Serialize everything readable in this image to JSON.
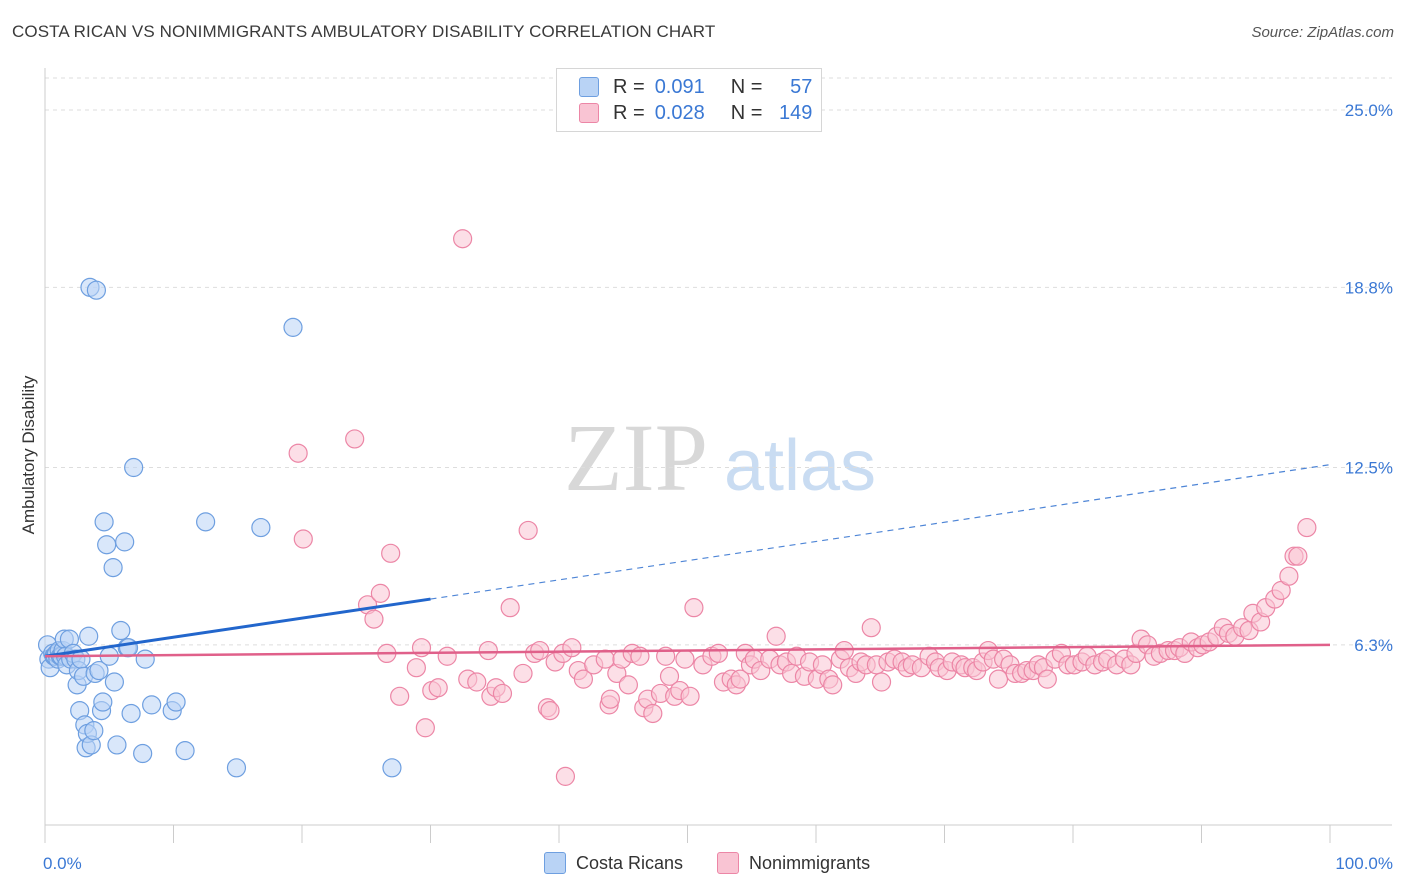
{
  "header": {
    "title": "COSTA RICAN VS NONIMMIGRANTS AMBULATORY DISABILITY CORRELATION CHART",
    "source": "Source: ZipAtlas.com"
  },
  "legend": {
    "r_label": "R =",
    "n_label": "N =",
    "rows": [
      {
        "r": "0.091",
        "n": "57"
      },
      {
        "r": "0.028",
        "n": "149"
      }
    ]
  },
  "watermark": {
    "zip": "ZIP",
    "atlas": "atlas"
  },
  "colors": {
    "blue_fill": "#b9d3f5",
    "blue_stroke": "#6e9fe0",
    "blue_line": "#2266cc",
    "pink_fill": "#f9c4d3",
    "pink_stroke": "#ec86a6",
    "pink_line": "#e0608a",
    "tick_label": "#3a78d4"
  },
  "chart_data": {
    "type": "scatter",
    "title": "COSTA RICAN VS NONIMMIGRANTS AMBULATORY DISABILITY CORRELATION CHART",
    "xlabel": "",
    "ylabel": "Ambulatory Disability",
    "xlim": [
      0,
      100
    ],
    "ylim": [
      0,
      26.4
    ],
    "x_tick_labels": [
      "0.0%",
      "100.0%"
    ],
    "y_ticks": [
      6.3,
      12.5,
      18.8,
      25.0
    ],
    "y_tick_labels": [
      "6.3%",
      "12.5%",
      "18.8%",
      "25.0%"
    ],
    "grid": "horizontal dashed",
    "legend_position": "top-center",
    "series": [
      {
        "name": "Costa Ricans",
        "R": 0.091,
        "N": 57,
        "trend": {
          "x": [
            0,
            30
          ],
          "y": [
            5.9,
            7.9
          ],
          "extended_to": [
            100,
            12.6
          ]
        },
        "points": [
          [
            0.2,
            6.3
          ],
          [
            0.3,
            5.8
          ],
          [
            0.4,
            5.5
          ],
          [
            0.6,
            6.0
          ],
          [
            0.7,
            5.9
          ],
          [
            0.8,
            5.9
          ],
          [
            0.9,
            6.0
          ],
          [
            1.0,
            5.8
          ],
          [
            1.1,
            6.1
          ],
          [
            1.2,
            5.9
          ],
          [
            1.3,
            5.9
          ],
          [
            1.4,
            6.1
          ],
          [
            1.5,
            6.5
          ],
          [
            1.6,
            5.9
          ],
          [
            1.7,
            5.6
          ],
          [
            1.9,
            6.5
          ],
          [
            2.0,
            5.8
          ],
          [
            2.2,
            6.0
          ],
          [
            2.4,
            5.8
          ],
          [
            2.5,
            4.9
          ],
          [
            2.6,
            5.4
          ],
          [
            2.7,
            4.0
          ],
          [
            2.8,
            5.8
          ],
          [
            3.0,
            5.2
          ],
          [
            3.1,
            3.5
          ],
          [
            3.2,
            2.7
          ],
          [
            3.3,
            3.2
          ],
          [
            3.4,
            6.6
          ],
          [
            3.5,
            18.8
          ],
          [
            3.6,
            2.8
          ],
          [
            3.8,
            3.3
          ],
          [
            3.9,
            5.3
          ],
          [
            4.0,
            18.7
          ],
          [
            4.2,
            5.4
          ],
          [
            4.4,
            4.0
          ],
          [
            4.5,
            4.3
          ],
          [
            4.6,
            10.6
          ],
          [
            4.8,
            9.8
          ],
          [
            5.0,
            5.9
          ],
          [
            5.3,
            9.0
          ],
          [
            5.4,
            5.0
          ],
          [
            5.6,
            2.8
          ],
          [
            5.9,
            6.8
          ],
          [
            6.2,
            9.9
          ],
          [
            6.4,
            6.2
          ],
          [
            6.5,
            6.2
          ],
          [
            6.7,
            3.9
          ],
          [
            6.9,
            12.5
          ],
          [
            7.6,
            2.5
          ],
          [
            7.8,
            5.8
          ],
          [
            8.3,
            4.2
          ],
          [
            9.9,
            4.0
          ],
          [
            10.2,
            4.3
          ],
          [
            10.9,
            2.6
          ],
          [
            12.5,
            10.6
          ],
          [
            14.9,
            2.0
          ],
          [
            16.8,
            10.4
          ],
          [
            19.3,
            17.4
          ],
          [
            27.0,
            2.0
          ]
        ]
      },
      {
        "name": "Nonimmigrants",
        "R": 0.028,
        "N": 149,
        "trend": {
          "x": [
            0,
            100
          ],
          "y": [
            5.9,
            6.3
          ]
        },
        "points": [
          [
            19.7,
            13.0
          ],
          [
            20.1,
            10.0
          ],
          [
            24.1,
            13.5
          ],
          [
            25.1,
            7.7
          ],
          [
            25.6,
            7.2
          ],
          [
            26.1,
            8.1
          ],
          [
            26.6,
            6.0
          ],
          [
            26.9,
            9.5
          ],
          [
            27.6,
            4.5
          ],
          [
            28.9,
            5.5
          ],
          [
            29.3,
            6.2
          ],
          [
            29.6,
            3.4
          ],
          [
            30.1,
            4.7
          ],
          [
            30.6,
            4.8
          ],
          [
            31.3,
            5.9
          ],
          [
            32.5,
            20.5
          ],
          [
            32.9,
            5.1
          ],
          [
            33.6,
            5.0
          ],
          [
            34.5,
            6.1
          ],
          [
            34.7,
            4.5
          ],
          [
            35.1,
            4.8
          ],
          [
            35.6,
            4.6
          ],
          [
            36.2,
            7.6
          ],
          [
            37.2,
            5.3
          ],
          [
            37.6,
            10.3
          ],
          [
            38.1,
            6.0
          ],
          [
            38.5,
            6.1
          ],
          [
            39.1,
            4.1
          ],
          [
            39.3,
            4.0
          ],
          [
            39.7,
            5.7
          ],
          [
            40.3,
            6.0
          ],
          [
            40.5,
            1.7
          ],
          [
            41.0,
            6.2
          ],
          [
            41.5,
            5.4
          ],
          [
            41.9,
            5.1
          ],
          [
            42.7,
            5.6
          ],
          [
            43.6,
            5.8
          ],
          [
            43.9,
            4.2
          ],
          [
            44.0,
            4.4
          ],
          [
            44.5,
            5.3
          ],
          [
            44.9,
            5.8
          ],
          [
            45.4,
            4.9
          ],
          [
            45.7,
            6.0
          ],
          [
            46.3,
            5.9
          ],
          [
            46.6,
            4.1
          ],
          [
            46.9,
            4.4
          ],
          [
            47.3,
            3.9
          ],
          [
            47.9,
            4.6
          ],
          [
            48.3,
            5.9
          ],
          [
            48.6,
            5.2
          ],
          [
            49.0,
            4.5
          ],
          [
            49.4,
            4.7
          ],
          [
            49.8,
            5.8
          ],
          [
            50.2,
            4.5
          ],
          [
            50.5,
            7.6
          ],
          [
            51.2,
            5.6
          ],
          [
            51.9,
            5.9
          ],
          [
            52.4,
            6.0
          ],
          [
            52.8,
            5.0
          ],
          [
            53.4,
            5.1
          ],
          [
            53.8,
            4.9
          ],
          [
            54.1,
            5.1
          ],
          [
            54.5,
            6.0
          ],
          [
            54.9,
            5.6
          ],
          [
            55.2,
            5.8
          ],
          [
            55.7,
            5.4
          ],
          [
            56.4,
            5.8
          ],
          [
            56.9,
            6.6
          ],
          [
            57.2,
            5.6
          ],
          [
            57.7,
            5.7
          ],
          [
            58.1,
            5.3
          ],
          [
            58.5,
            5.9
          ],
          [
            59.1,
            5.2
          ],
          [
            59.5,
            5.7
          ],
          [
            60.1,
            5.1
          ],
          [
            60.5,
            5.6
          ],
          [
            61.0,
            5.1
          ],
          [
            61.3,
            4.9
          ],
          [
            61.9,
            5.8
          ],
          [
            62.2,
            6.1
          ],
          [
            62.6,
            5.5
          ],
          [
            63.1,
            5.3
          ],
          [
            63.5,
            5.7
          ],
          [
            63.9,
            5.6
          ],
          [
            64.3,
            6.9
          ],
          [
            64.7,
            5.6
          ],
          [
            65.1,
            5.0
          ],
          [
            65.6,
            5.7
          ],
          [
            66.1,
            5.8
          ],
          [
            66.7,
            5.7
          ],
          [
            67.1,
            5.5
          ],
          [
            67.5,
            5.6
          ],
          [
            68.2,
            5.5
          ],
          [
            68.8,
            5.9
          ],
          [
            69.3,
            5.7
          ],
          [
            69.6,
            5.5
          ],
          [
            70.2,
            5.4
          ],
          [
            70.6,
            5.7
          ],
          [
            71.3,
            5.6
          ],
          [
            71.6,
            5.5
          ],
          [
            72.2,
            5.5
          ],
          [
            72.5,
            5.4
          ],
          [
            73.0,
            5.7
          ],
          [
            73.4,
            6.1
          ],
          [
            73.8,
            5.8
          ],
          [
            74.2,
            5.1
          ],
          [
            74.6,
            5.8
          ],
          [
            75.1,
            5.6
          ],
          [
            75.5,
            5.3
          ],
          [
            76.0,
            5.3
          ],
          [
            76.4,
            5.4
          ],
          [
            76.9,
            5.4
          ],
          [
            77.3,
            5.6
          ],
          [
            77.7,
            5.5
          ],
          [
            78.0,
            5.1
          ],
          [
            78.6,
            5.8
          ],
          [
            79.1,
            6.0
          ],
          [
            79.6,
            5.6
          ],
          [
            80.1,
            5.6
          ],
          [
            80.7,
            5.7
          ],
          [
            81.1,
            5.9
          ],
          [
            81.7,
            5.6
          ],
          [
            82.3,
            5.7
          ],
          [
            82.7,
            5.8
          ],
          [
            83.4,
            5.6
          ],
          [
            84.0,
            5.8
          ],
          [
            84.5,
            5.6
          ],
          [
            84.9,
            6.0
          ],
          [
            85.3,
            6.5
          ],
          [
            85.8,
            6.3
          ],
          [
            86.3,
            5.9
          ],
          [
            86.8,
            6.0
          ],
          [
            87.4,
            6.1
          ],
          [
            87.9,
            6.1
          ],
          [
            88.3,
            6.2
          ],
          [
            88.7,
            6.0
          ],
          [
            89.2,
            6.4
          ],
          [
            89.7,
            6.2
          ],
          [
            90.1,
            6.3
          ],
          [
            90.6,
            6.4
          ],
          [
            91.2,
            6.6
          ],
          [
            91.7,
            6.9
          ],
          [
            92.1,
            6.7
          ],
          [
            92.6,
            6.6
          ],
          [
            93.2,
            6.9
          ],
          [
            93.7,
            6.8
          ],
          [
            94.0,
            7.4
          ],
          [
            94.6,
            7.1
          ],
          [
            95.0,
            7.6
          ],
          [
            95.7,
            7.9
          ],
          [
            96.2,
            8.2
          ],
          [
            96.8,
            8.7
          ],
          [
            97.2,
            9.4
          ],
          [
            97.5,
            9.4
          ],
          [
            98.2,
            10.4
          ]
        ]
      }
    ]
  }
}
